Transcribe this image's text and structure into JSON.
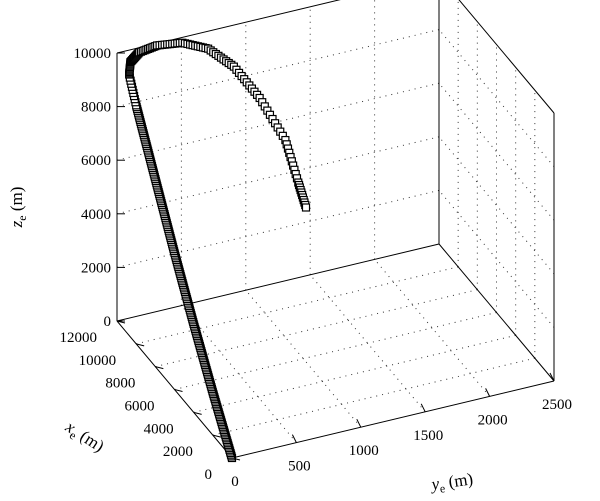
{
  "chart_data": {
    "type": "scatter",
    "projection": "3d",
    "grid": true,
    "axes": {
      "x": {
        "label": "x",
        "subscript": "e",
        "unit": "(m)",
        "range": [
          0,
          12000
        ],
        "ticks": [
          "0",
          "2000",
          "4000",
          "6000",
          "8000",
          "10000",
          "12000"
        ]
      },
      "y": {
        "label": "y",
        "subscript": "e",
        "unit": "(m)",
        "range": [
          0,
          2500
        ],
        "ticks": [
          "0",
          "500",
          "1000",
          "1500",
          "2000",
          "2500"
        ]
      },
      "z": {
        "label": "z",
        "subscript": "e",
        "unit": "(m)",
        "range": [
          0,
          10000
        ],
        "ticks": [
          "0",
          "2000",
          "4000",
          "6000",
          "8000",
          "10000"
        ]
      }
    },
    "series": [
      {
        "marker": "square",
        "x": [
          0,
          2000,
          4000,
          6000,
          8000,
          10000,
          11000,
          11400,
          11700,
          11850,
          11900,
          11900,
          11900,
          11900,
          11900,
          11900,
          11900
        ],
        "y": [
          0,
          0,
          0,
          0,
          0,
          0,
          20,
          60,
          150,
          300,
          500,
          700,
          900,
          1100,
          1300,
          1400,
          1460
        ],
        "z": [
          0,
          1600,
          3300,
          5100,
          7000,
          8900,
          9600,
          9850,
          9980,
          10000,
          9850,
          9400,
          8500,
          7100,
          5300,
          3600,
          2600
        ]
      }
    ]
  }
}
